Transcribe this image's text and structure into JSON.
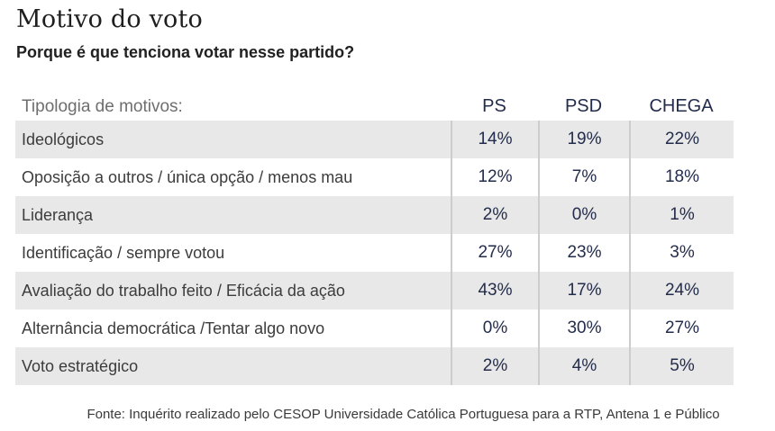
{
  "page": {
    "title": "Motivo do voto",
    "subtitle": "Porque é que tenciona votar nesse partido?",
    "footer": "Fonte: Inquérito realizado pelo CESOP Universidade Católica Portuguesa para a RTP, Antena 1 e Público"
  },
  "table": {
    "typology_label": "Tipologia de motivos:",
    "columns": [
      "PS",
      "PSD",
      "CHEGA"
    ],
    "rows": [
      {
        "label": "Ideológicos",
        "values": [
          "14%",
          "19%",
          "22%"
        ]
      },
      {
        "label": "Oposição a outros / única opção / menos mau",
        "values": [
          "12%",
          "7%",
          "18%"
        ]
      },
      {
        "label": "Liderança",
        "values": [
          "2%",
          "0%",
          "1%"
        ]
      },
      {
        "label": "Identificação / sempre votou",
        "values": [
          "27%",
          "23%",
          "3%"
        ]
      },
      {
        "label": "Avaliação do trabalho feito / Eficácia da ação",
        "values": [
          "43%",
          "17%",
          "24%"
        ]
      },
      {
        "label": "Alternância democrática /Tentar algo novo",
        "values": [
          "0%",
          "30%",
          "27%"
        ]
      },
      {
        "label": "Voto estratégico",
        "values": [
          "2%",
          "4%",
          "5%"
        ]
      }
    ]
  },
  "colors": {
    "accent_navy": "#232c4b",
    "row_stripe_gray": "#e8e8e8",
    "separator_gray": "#cdcdcd",
    "typology_label_gray": "#6e6e6e",
    "title_black": "#1e1e1e"
  },
  "chart_data": {
    "type": "table",
    "title": "Motivo do voto",
    "subtitle": "Porque é que tenciona votar nesse partido?",
    "categories": [
      "Ideológicos",
      "Oposição a outros / única opção / menos mau",
      "Liderança",
      "Identificação / sempre votou",
      "Avaliação do trabalho feito / Eficácia da ação",
      "Alternância democrática /Tentar algo novo",
      "Voto estratégico"
    ],
    "series": [
      {
        "name": "PS",
        "values": [
          14,
          12,
          2,
          27,
          43,
          0,
          2
        ]
      },
      {
        "name": "PSD",
        "values": [
          19,
          7,
          0,
          23,
          17,
          30,
          4
        ]
      },
      {
        "name": "CHEGA",
        "values": [
          22,
          18,
          1,
          3,
          24,
          27,
          5
        ]
      }
    ],
    "unit": "%",
    "source": "Fonte: Inquérito realizado pelo CESOP Universidade Católica Portuguesa para a RTP, Antena 1 e Público"
  }
}
